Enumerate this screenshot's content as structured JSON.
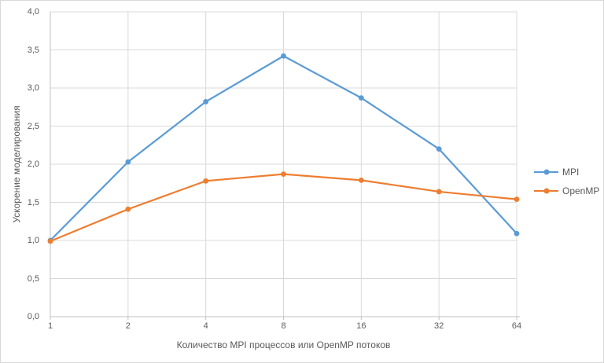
{
  "chart_data": {
    "type": "line",
    "title": "",
    "categories": [
      "1",
      "2",
      "4",
      "8",
      "16",
      "32",
      "64"
    ],
    "series": [
      {
        "name": "MPI",
        "color": "#5B9BD5",
        "values": [
          1.0,
          2.03,
          2.82,
          3.42,
          2.87,
          2.2,
          1.09
        ]
      },
      {
        "name": "OpenMP",
        "color": "#ED7D31",
        "values": [
          0.99,
          1.41,
          1.78,
          1.87,
          1.79,
          1.64,
          1.54
        ]
      }
    ],
    "xlabel": "Количество MPI процессов или OpenMP потоков",
    "ylabel": "Ускорение моделирования",
    "ylim": [
      0,
      4
    ],
    "y_tick_step": 0.5,
    "y_tick_labels": [
      "0,0",
      "0,5",
      "1,0",
      "1,5",
      "2,0",
      "2,5",
      "3,0",
      "3,5",
      "4,0"
    ],
    "grid": true,
    "legend_position": "right",
    "marker": "circle",
    "colors": {
      "gridline": "#D9D9D9",
      "axis": "#BFBFBF",
      "text": "#595959",
      "chart_border": "#D9D9D9",
      "background": "#FFFFFF"
    }
  }
}
